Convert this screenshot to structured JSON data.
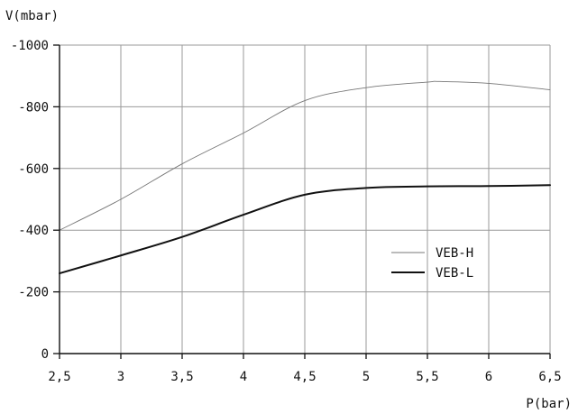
{
  "chart_data": {
    "type": "line",
    "xlabel": "P(bar)",
    "ylabel": "V(mbar)",
    "xlim": [
      2.5,
      6.5
    ],
    "ylim": [
      0,
      -1000
    ],
    "x_ticks": [
      2.5,
      3,
      3.5,
      4,
      4.5,
      5,
      5.5,
      6,
      6.5
    ],
    "x_tick_labels": [
      "2,5",
      "3",
      "3,5",
      "4",
      "4,5",
      "5",
      "5,5",
      "6",
      "6,5"
    ],
    "y_ticks": [
      0,
      -200,
      -400,
      -600,
      -800,
      -1000
    ],
    "y_tick_labels": [
      "0",
      "-200",
      "-400",
      "-600",
      "-800",
      "-1000"
    ],
    "grid": true,
    "legend_position": "right",
    "series": [
      {
        "name": "VEB-H",
        "style": "thin",
        "color": "#777777",
        "x": [
          2.5,
          3,
          3.5,
          4,
          4.5,
          5,
          5.5,
          5.6,
          6,
          6.5
        ],
        "y": [
          -400,
          -500,
          -615,
          -715,
          -820,
          -862,
          -880,
          -882,
          -876,
          -855
        ]
      },
      {
        "name": "VEB-L",
        "style": "thick",
        "color": "#111111",
        "x": [
          2.5,
          3,
          3.5,
          4,
          4.5,
          5,
          5.5,
          6,
          6.5
        ],
        "y": [
          -260,
          -318,
          -378,
          -450,
          -515,
          -537,
          -542,
          -543,
          -546
        ]
      }
    ]
  }
}
